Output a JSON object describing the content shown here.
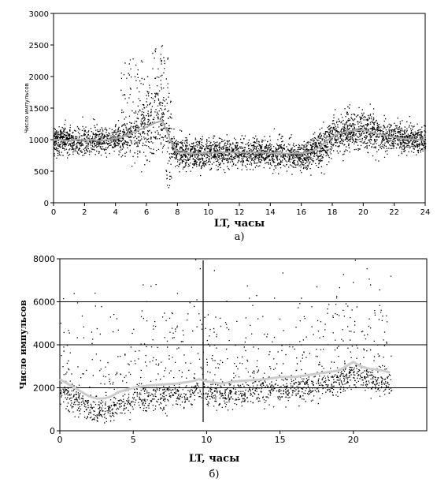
{
  "chart_data": [
    {
      "type": "scatter",
      "panel_label": "а)",
      "xlabel": "LT, часы",
      "ylabel": "Число импульсов",
      "xlim": [
        0,
        24
      ],
      "ylim": [
        0,
        3000
      ],
      "xticks": [
        0,
        2,
        4,
        6,
        8,
        10,
        12,
        14,
        16,
        18,
        20,
        22,
        24
      ],
      "yticks": [
        0,
        500,
        1000,
        1500,
        2000,
        2500,
        3000
      ],
      "grid": false,
      "colors": {
        "points": "#000000",
        "mean_line": "#aaaaaa",
        "background": "#ffffff"
      },
      "series": [
        {
          "type": "line",
          "x": [
            0,
            0.5,
            1,
            1.5,
            2,
            2.5,
            3,
            3.5,
            4,
            4.5,
            5,
            5.5,
            6,
            6.5,
            7,
            7.3,
            7.6,
            8,
            8.5,
            9,
            10,
            11,
            12,
            13,
            14,
            15,
            16,
            16.5,
            17,
            17.5,
            18,
            18.5,
            19,
            19.5,
            20,
            20.5,
            21,
            21.5,
            22,
            22.5,
            23,
            23.5,
            24
          ],
          "y": [
            1000,
            1000,
            980,
            1000,
            990,
            1000,
            980,
            1000,
            1020,
            1050,
            1100,
            1150,
            1200,
            1260,
            1300,
            1150,
            950,
            800,
            790,
            780,
            790,
            800,
            790,
            800,
            790,
            780,
            780,
            800,
            850,
            950,
            1050,
            1100,
            1130,
            1150,
            1150,
            1120,
            1090,
            1060,
            1040,
            1020,
            1010,
            1000,
            990
          ]
        }
      ]
    },
    {
      "type": "scatter",
      "panel_label": "б)",
      "xlabel": "LT, часы",
      "ylabel": "Число импульсов",
      "xlim": [
        0,
        25
      ],
      "ylim": [
        0,
        8000
      ],
      "xticks": [
        0,
        5,
        10,
        15,
        20
      ],
      "yticks": [
        0,
        2000,
        4000,
        6000,
        8000
      ],
      "grid": true,
      "colors": {
        "points": "#000000",
        "mean_line": "#cccccc",
        "background": "#ffffff"
      },
      "series": [
        {
          "type": "line",
          "x": [
            0,
            0.5,
            1,
            1.5,
            2,
            2.5,
            3,
            3.5,
            4,
            4.5,
            5,
            5.5,
            6,
            7,
            8,
            9,
            9.5,
            10,
            11,
            12,
            13,
            14,
            15,
            16,
            17,
            18,
            19,
            19.5,
            20,
            20.5,
            21,
            21.5,
            22,
            22.5
          ],
          "y": [
            2400,
            2200,
            2000,
            1800,
            1600,
            1500,
            1500,
            1600,
            1800,
            1900,
            2000,
            2050,
            2100,
            2150,
            2200,
            2300,
            2400,
            2300,
            2200,
            2300,
            2350,
            2400,
            2500,
            2500,
            2600,
            2700,
            2800,
            3000,
            3200,
            3000,
            2900,
            2850,
            2800,
            2700
          ]
        }
      ]
    }
  ]
}
